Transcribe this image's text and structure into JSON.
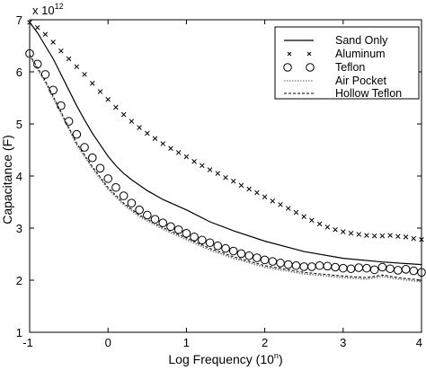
{
  "chart_data": {
    "type": "line",
    "xlabel": "Log Frequency (10",
    "xlabel_sup": "n",
    "xlabel_end": ")",
    "ylabel": "Capacitance (F)",
    "scale_factor": "x 10",
    "scale_exponent": "12",
    "xlim": [
      -1,
      4
    ],
    "ylim": [
      1,
      7
    ],
    "x_ticks": [
      "-1",
      "0",
      "1",
      "2",
      "3",
      "4"
    ],
    "y_ticks": [
      "1",
      "2",
      "3",
      "4",
      "5",
      "6",
      "7"
    ],
    "legend_position": "top-right",
    "series": [
      {
        "name": "Sand Only",
        "marker": "solid-line",
        "x": [
          -1.0,
          -0.9,
          -0.8,
          -0.7,
          -0.6,
          -0.5,
          -0.4,
          -0.3,
          -0.2,
          -0.1,
          0.0,
          0.1,
          0.2,
          0.3,
          0.5,
          0.7,
          1.0,
          1.3,
          1.6,
          2.0,
          2.5,
          3.0,
          3.5,
          4.0
        ],
        "y": [
          6.95,
          6.75,
          6.5,
          6.25,
          5.95,
          5.65,
          5.35,
          5.08,
          4.82,
          4.6,
          4.38,
          4.2,
          4.05,
          3.93,
          3.72,
          3.55,
          3.35,
          3.12,
          2.95,
          2.75,
          2.55,
          2.42,
          2.35,
          2.3
        ]
      },
      {
        "name": "Aluminum",
        "marker": "x",
        "x": [
          -1.0,
          -0.9,
          -0.8,
          -0.7,
          -0.6,
          -0.5,
          -0.4,
          -0.3,
          -0.2,
          -0.1,
          0.0,
          0.1,
          0.2,
          0.3,
          0.4,
          0.5,
          0.6,
          0.7,
          0.8,
          0.9,
          1.0,
          1.1,
          1.2,
          1.3,
          1.4,
          1.5,
          1.6,
          1.7,
          1.8,
          1.9,
          2.0,
          2.1,
          2.2,
          2.3,
          2.4,
          2.5,
          2.6,
          2.7,
          2.8,
          2.9,
          3.0,
          3.1,
          3.2,
          3.3,
          3.4,
          3.5,
          3.6,
          3.7,
          3.8,
          3.9,
          4.0
        ],
        "y": [
          6.95,
          6.85,
          6.72,
          6.57,
          6.4,
          6.25,
          6.1,
          5.95,
          5.78,
          5.62,
          5.47,
          5.32,
          5.18,
          5.05,
          4.93,
          4.82,
          4.72,
          4.62,
          4.53,
          4.45,
          4.37,
          4.28,
          4.2,
          4.12,
          4.05,
          3.97,
          3.9,
          3.82,
          3.75,
          3.68,
          3.6,
          3.52,
          3.45,
          3.38,
          3.3,
          3.22,
          3.15,
          3.08,
          3.02,
          2.97,
          2.93,
          2.9,
          2.88,
          2.86,
          2.85,
          2.85,
          2.86,
          2.84,
          2.83,
          2.8,
          2.78
        ]
      },
      {
        "name": "Teflon",
        "marker": "circle",
        "x": [
          -1.0,
          -0.9,
          -0.8,
          -0.7,
          -0.6,
          -0.5,
          -0.4,
          -0.3,
          -0.2,
          -0.1,
          0.0,
          0.1,
          0.2,
          0.3,
          0.4,
          0.5,
          0.6,
          0.7,
          0.8,
          0.9,
          1.0,
          1.1,
          1.2,
          1.3,
          1.4,
          1.5,
          1.6,
          1.7,
          1.8,
          1.9,
          2.0,
          2.1,
          2.2,
          2.3,
          2.4,
          2.5,
          2.6,
          2.7,
          2.8,
          2.9,
          3.0,
          3.1,
          3.2,
          3.3,
          3.4,
          3.5,
          3.6,
          3.7,
          3.8,
          3.9,
          4.0
        ],
        "y": [
          6.35,
          6.15,
          5.95,
          5.65,
          5.35,
          5.05,
          4.8,
          4.55,
          4.35,
          4.15,
          3.95,
          3.78,
          3.62,
          3.48,
          3.35,
          3.25,
          3.17,
          3.1,
          3.03,
          2.97,
          2.9,
          2.83,
          2.77,
          2.72,
          2.66,
          2.61,
          2.56,
          2.51,
          2.47,
          2.43,
          2.39,
          2.36,
          2.33,
          2.3,
          2.28,
          2.26,
          2.26,
          2.28,
          2.27,
          2.25,
          2.23,
          2.22,
          2.24,
          2.23,
          2.2,
          2.25,
          2.22,
          2.19,
          2.21,
          2.18,
          2.15
        ]
      },
      {
        "name": "Air Pocket",
        "marker": "dotted-line",
        "x": [
          -1.0,
          -0.8,
          -0.6,
          -0.4,
          -0.2,
          0.0,
          0.2,
          0.4,
          0.7,
          1.0,
          1.3,
          1.6,
          2.0,
          2.5,
          3.0,
          3.3,
          3.5,
          3.7,
          4.0
        ],
        "y": [
          6.3,
          5.8,
          5.2,
          4.6,
          4.15,
          3.75,
          3.45,
          3.22,
          2.98,
          2.78,
          2.58,
          2.42,
          2.25,
          2.12,
          2.05,
          2.02,
          2.07,
          2.02,
          1.97
        ]
      },
      {
        "name": "Hollow Teflon",
        "marker": "dashed-line",
        "x": [
          -1.0,
          -0.8,
          -0.6,
          -0.4,
          -0.2,
          0.0,
          0.2,
          0.4,
          0.7,
          1.0,
          1.3,
          1.6,
          2.0,
          2.5,
          3.0,
          3.3,
          3.5,
          3.7,
          4.0
        ],
        "y": [
          6.33,
          5.83,
          5.23,
          4.63,
          4.18,
          3.78,
          3.48,
          3.25,
          3.01,
          2.81,
          2.61,
          2.45,
          2.28,
          2.15,
          2.08,
          2.05,
          2.1,
          2.05,
          2.0
        ]
      }
    ]
  }
}
